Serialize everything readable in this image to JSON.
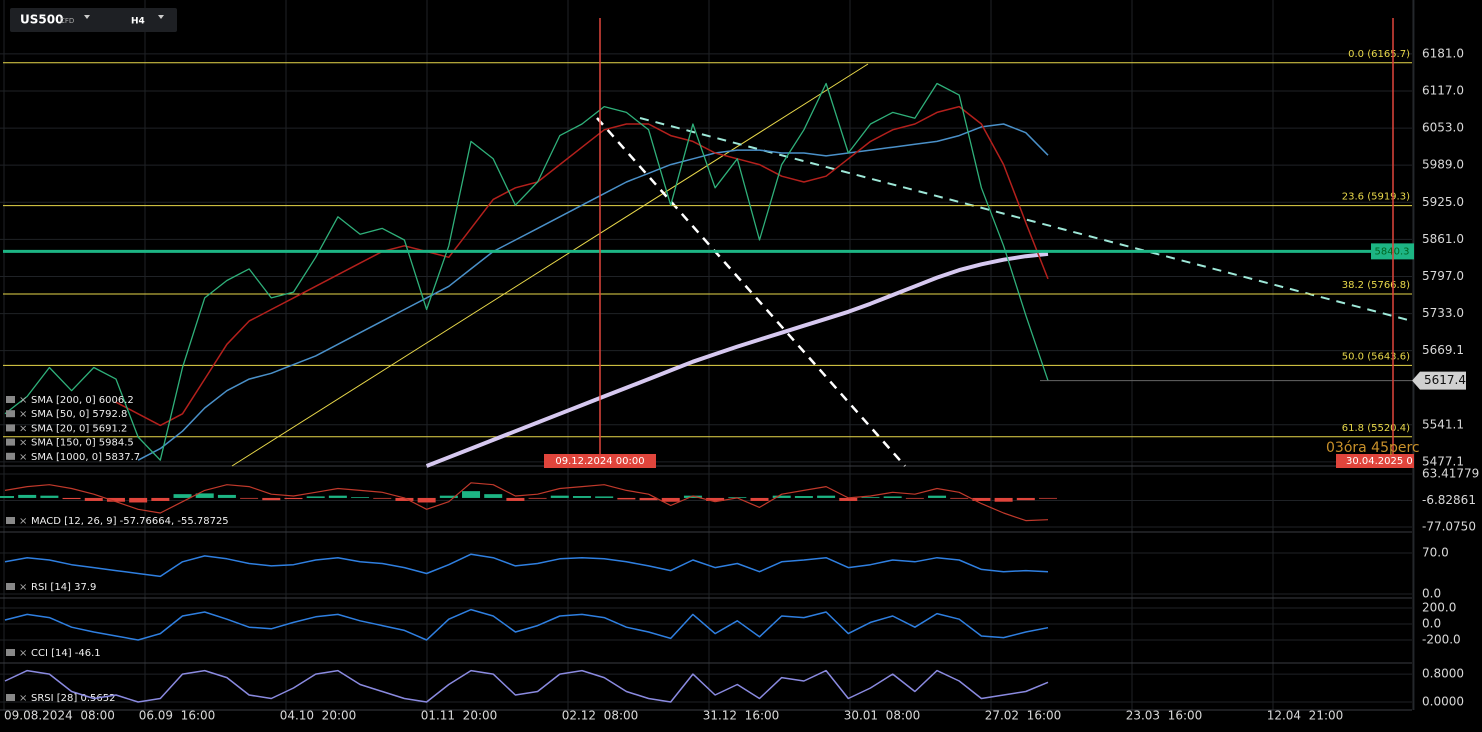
{
  "toolbar": {
    "symbol": "US500",
    "badge": "CFD",
    "timeframe": "H4"
  },
  "main": {
    "ylim": [
      5470,
      6274
    ],
    "yticks": [
      {
        "value": 6181,
        "label": "6181.0"
      },
      {
        "value": 6117,
        "label": "6117.0"
      },
      {
        "value": 6053,
        "label": "6053.0"
      },
      {
        "value": 5989,
        "label": "5989.0"
      },
      {
        "value": 5925,
        "label": "5925.0"
      },
      {
        "value": 5861,
        "label": "5861.0"
      },
      {
        "value": 5797,
        "label": "5797.0"
      },
      {
        "value": 5733,
        "label": "5733.0"
      },
      5669.1,
      5541.1,
      5477.1
    ],
    "fib": [
      {
        "value": 6165.7,
        "label": "0.0 (6165.7)"
      },
      {
        "value": 5919.3,
        "label": "23.6 (5919.3)"
      },
      {
        "value": 5766.8,
        "label": "38.2 (5766.8)"
      },
      {
        "value": 5643.6,
        "label": "50.0 (5643.6)"
      },
      {
        "value": 5520.4,
        "label": "61.8 (5520.4)"
      }
    ],
    "support": 5840.3,
    "last": 5617.4,
    "marker_left": "09.12.2024 00:00",
    "marker_right": "30.04.2025 0",
    "countdown": "03óra 45perc",
    "legends": [
      "SMA [200, 0] 6006.2",
      "SMA [50, 0] 5792.8",
      "SMA [20, 0] 5691.2",
      "SMA [150, 0] 5984.5",
      "SMA [1000, 0] 5837.7"
    ],
    "close": [
      5560,
      5590,
      5640,
      5600,
      5640,
      5620,
      5520,
      5480,
      5640,
      5760,
      5790,
      5810,
      5760,
      5770,
      5830,
      5900,
      5870,
      5880,
      5860,
      5740,
      5850,
      6030,
      6000,
      5920,
      5960,
      6040,
      6060,
      6090,
      6080,
      6050,
      5920,
      6060,
      5950,
      6000,
      5860,
      5990,
      6050,
      6130,
      6010,
      6060,
      6080,
      6070,
      6130,
      6110,
      5950,
      5850,
      5730,
      5617.4
    ],
    "sma50": [
      null,
      null,
      null,
      null,
      null,
      5580,
      5560,
      5540,
      5560,
      5620,
      5680,
      5720,
      5740,
      5760,
      5780,
      5800,
      5820,
      5840,
      5850,
      5840,
      5830,
      5880,
      5930,
      5950,
      5960,
      5990,
      6020,
      6050,
      6060,
      6060,
      6040,
      6030,
      6010,
      6000,
      5990,
      5970,
      5960,
      5970,
      6000,
      6030,
      6050,
      6060,
      6080,
      6090,
      6060,
      5990,
      5890,
      5792.8
    ],
    "sma200": [
      null,
      null,
      null,
      null,
      null,
      null,
      5480,
      5500,
      5530,
      5570,
      5600,
      5620,
      5630,
      5645,
      5660,
      5680,
      5700,
      5720,
      5740,
      5760,
      5780,
      5810,
      5840,
      5860,
      5880,
      5900,
      5920,
      5940,
      5960,
      5975,
      5990,
      6000,
      6010,
      6015,
      6015,
      6010,
      6010,
      6005,
      6010,
      6015,
      6020,
      6025,
      6030,
      6040,
      6055,
      6060,
      6045,
      6006.2
    ],
    "sma1000": [
      null,
      null,
      null,
      null,
      null,
      null,
      null,
      null,
      null,
      null,
      null,
      null,
      null,
      null,
      null,
      null,
      null,
      null,
      null,
      5470,
      5485,
      5500,
      5515,
      5530,
      5545,
      5560,
      5575,
      5590,
      5605,
      5620,
      5635,
      5650,
      5663,
      5676,
      5688,
      5700,
      5712,
      5724,
      5736,
      5750,
      5765,
      5780,
      5795,
      5808,
      5818,
      5826,
      5832,
      5836
    ]
  },
  "macd": {
    "legend": "MACD [12, 26, 9] -57.76664, -55.78725",
    "ylim": [
      -90.3,
      82
    ],
    "yticks": [
      63.41779,
      -6.82861,
      {
        "value": -77.075,
        "label": "-77.0750"
      }
    ],
    "histogram": [
      5,
      8,
      6,
      -3,
      -8,
      -10,
      -12,
      -8,
      10,
      12,
      8,
      -2,
      -6,
      -3,
      4,
      6,
      2,
      -2,
      -8,
      -12,
      6,
      18,
      10,
      -8,
      -2,
      6,
      5,
      4,
      -4,
      -6,
      -10,
      6,
      -8,
      2,
      -8,
      6,
      5,
      6,
      -8,
      2,
      4,
      -2,
      6,
      -2,
      -8,
      -10,
      -6,
      -2
    ],
    "line": [
      20,
      30,
      35,
      25,
      10,
      -10,
      -30,
      -40,
      -10,
      20,
      35,
      30,
      10,
      5,
      15,
      25,
      20,
      15,
      0,
      -30,
      -10,
      40,
      35,
      5,
      10,
      25,
      30,
      35,
      20,
      10,
      -20,
      5,
      -10,
      0,
      -25,
      10,
      20,
      30,
      0,
      5,
      15,
      10,
      25,
      15,
      -15,
      -40,
      -60,
      -57.76664
    ]
  },
  "rsi": {
    "legend": "RSI [14] 37.9",
    "ylim": [
      -6.8,
      102.4
    ],
    "yticks": [
      {
        "value": 70,
        "label": "70.0"
      },
      {
        "value": 0,
        "label": "0.0"
      }
    ],
    "values": [
      55,
      62,
      58,
      50,
      45,
      40,
      35,
      30,
      55,
      65,
      60,
      52,
      48,
      50,
      58,
      62,
      55,
      52,
      45,
      35,
      50,
      68,
      62,
      48,
      52,
      60,
      62,
      60,
      55,
      48,
      40,
      58,
      45,
      52,
      38,
      55,
      58,
      62,
      45,
      50,
      58,
      55,
      62,
      58,
      42,
      38,
      40,
      37.9
    ]
  },
  "cci": {
    "legend": "CCI [14] -46.1",
    "ylim": [
      -487.5,
      300
    ],
    "yticks": [
      {
        "value": 200,
        "label": "200.0"
      },
      {
        "value": 0,
        "label": "0.0"
      },
      {
        "value": -200,
        "label": "-200.0"
      }
    ],
    "values": [
      50,
      120,
      80,
      -40,
      -100,
      -150,
      -200,
      -120,
      100,
      150,
      60,
      -40,
      -60,
      20,
      90,
      120,
      40,
      -20,
      -80,
      -200,
      60,
      180,
      100,
      -100,
      -20,
      100,
      120,
      80,
      -40,
      -100,
      -180,
      120,
      -120,
      40,
      -160,
      100,
      80,
      150,
      -120,
      20,
      100,
      -40,
      130,
      60,
      -150,
      -170,
      -100,
      -46.1
    ]
  },
  "srsi": {
    "legend": "SRSI [28] 0.5652",
    "ylim": [
      -0.23,
      1.06
    ],
    "yticks": [
      {
        "value": 0.8,
        "label": "0.8000"
      },
      {
        "value": 0,
        "label": "0.0000"
      }
    ],
    "values": [
      0.6,
      0.9,
      0.8,
      0.3,
      0.1,
      0.2,
      0.0,
      0.1,
      0.8,
      0.9,
      0.7,
      0.2,
      0.1,
      0.4,
      0.8,
      0.9,
      0.5,
      0.3,
      0.1,
      0.0,
      0.5,
      0.9,
      0.8,
      0.2,
      0.3,
      0.8,
      0.9,
      0.7,
      0.3,
      0.1,
      0.0,
      0.8,
      0.2,
      0.5,
      0.1,
      0.7,
      0.6,
      0.9,
      0.1,
      0.4,
      0.8,
      0.3,
      0.9,
      0.6,
      0.1,
      0.2,
      0.3,
      0.5652
    ]
  },
  "x_axis": {
    "labels": [
      "09.08.2024  08:00",
      "06.09  16:00",
      "04.10  20:00",
      "01.11  20:00",
      "02.12  08:00",
      "31.12  16:00",
      "30.01  08:00",
      "27.02  16:00",
      "23.03  16:00",
      "12.04  21:00"
    ]
  }
}
